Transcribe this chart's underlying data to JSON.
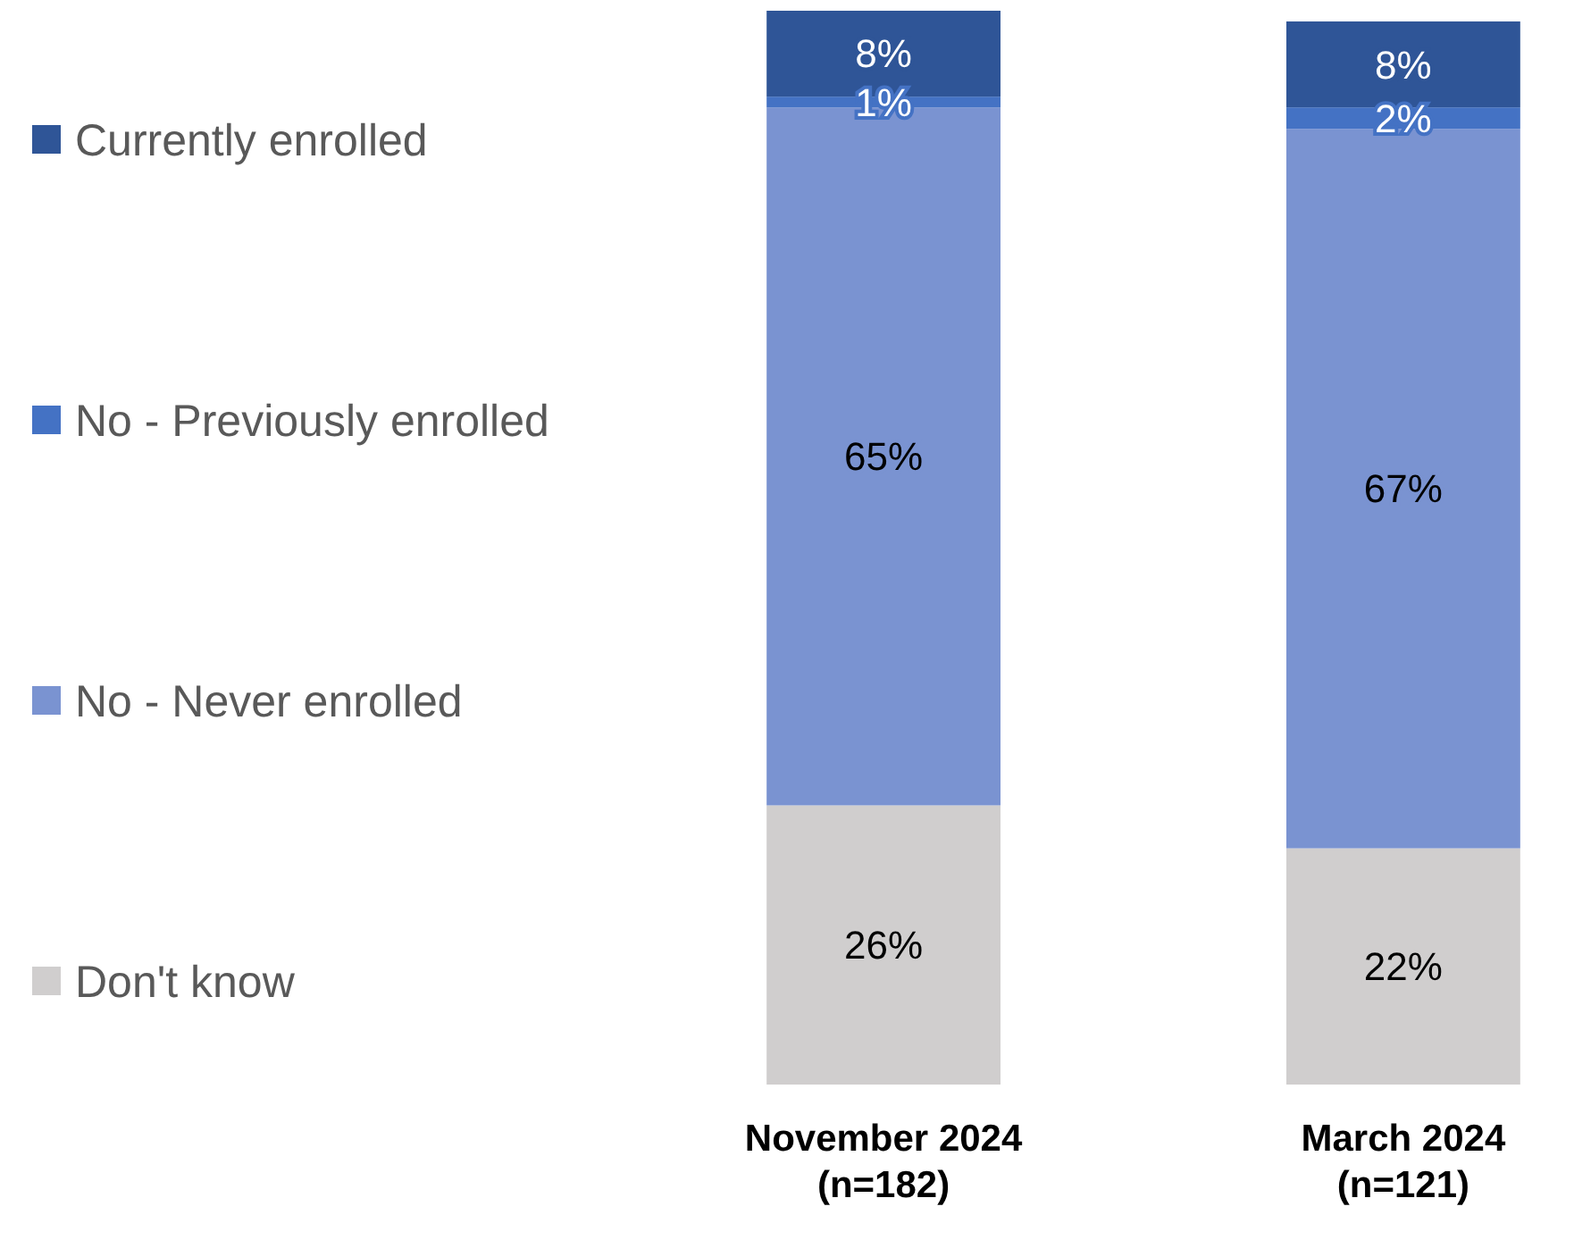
{
  "chart_data": {
    "type": "bar",
    "stacked": true,
    "legend": "left",
    "categories": [
      "November 2024\n(n=182)",
      "March 2024\n(n=121)"
    ],
    "series": [
      {
        "name": "Don't know",
        "color": "#d0cece",
        "values": [
          26,
          22
        ],
        "value_labels": [
          "26%",
          "22%"
        ]
      },
      {
        "name": "No - Never enrolled",
        "color": "#7a93d1",
        "values": [
          65,
          67
        ],
        "value_labels": [
          "65%",
          "67%"
        ]
      },
      {
        "name": "No - Previously enrolled",
        "color": "#4472c4",
        "values": [
          1,
          2
        ],
        "value_labels": [
          "1%",
          "2%"
        ]
      },
      {
        "name": "Currently enrolled",
        "color": "#2f5597",
        "values": [
          8,
          8
        ],
        "value_labels": [
          "8%",
          "8%"
        ]
      }
    ]
  }
}
